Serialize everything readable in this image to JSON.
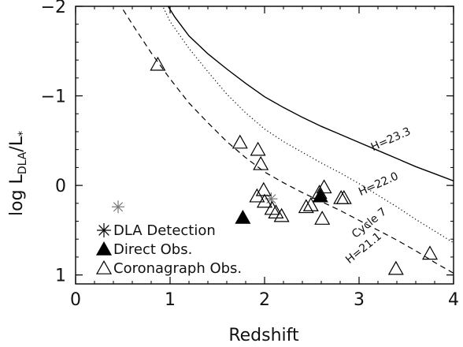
{
  "chart_data": {
    "type": "scatter",
    "title": "",
    "xlabel": "Redshift",
    "ylabel": {
      "main": "log L",
      "sub1": "DLA",
      "mid": "/L",
      "sub2": "*"
    },
    "xlim": [
      0,
      4
    ],
    "ylim": [
      1.1,
      -2.0
    ],
    "x_ticks": [
      0,
      1,
      2,
      3,
      4
    ],
    "y_ticks": [
      -2,
      -1,
      0,
      1
    ],
    "x_tick_labels": [
      "0",
      "1",
      "2",
      "3",
      "4"
    ],
    "y_tick_labels": [
      "−2",
      "−1",
      "0",
      "1"
    ],
    "grid": false,
    "legend": {
      "placement": "bottom-left",
      "entries": [
        {
          "label": "DLA Detection",
          "marker": "asterisk"
        },
        {
          "label": "Direct Obs.",
          "marker": "filled-triangle"
        },
        {
          "label": "Coronagraph Obs.",
          "marker": "open-triangle"
        }
      ]
    },
    "curves": [
      {
        "label": "H=23.3",
        "style": "solid",
        "x": [
          0.95,
          1.05,
          1.2,
          1.4,
          1.6,
          1.8,
          2.0,
          2.2,
          2.4,
          2.6,
          2.8,
          3.0,
          3.2,
          3.4,
          3.6,
          3.8,
          4.0
        ],
        "y": [
          -2.05,
          -1.88,
          -1.67,
          -1.47,
          -1.3,
          -1.14,
          -0.99,
          -0.87,
          -0.76,
          -0.66,
          -0.57,
          -0.48,
          -0.39,
          -0.3,
          -0.21,
          -0.13,
          -0.05
        ]
      },
      {
        "label": "H=22.0",
        "style": "dotted",
        "x": [
          0.9,
          1.0,
          1.2,
          1.4,
          1.6,
          1.8,
          2.0,
          2.2,
          2.4,
          2.6,
          2.8,
          3.0,
          3.2,
          3.4,
          3.6,
          3.8,
          4.0
        ],
        "y": [
          -2.05,
          -1.83,
          -1.53,
          -1.27,
          -1.02,
          -0.81,
          -0.63,
          -0.49,
          -0.37,
          -0.25,
          -0.14,
          -0.02,
          0.11,
          0.24,
          0.38,
          0.51,
          0.64
        ]
      },
      {
        "label": "H=21.1",
        "style": "dashed",
        "x": [
          0.45,
          0.6,
          0.8,
          1.0,
          1.2,
          1.4,
          1.6,
          1.8,
          2.0,
          2.2,
          2.4,
          2.6,
          2.8,
          3.0,
          3.2,
          3.4,
          3.6,
          3.8,
          4.0
        ],
        "y": [
          -2.05,
          -1.8,
          -1.48,
          -1.19,
          -0.92,
          -0.7,
          -0.49,
          -0.31,
          -0.15,
          -0.03,
          0.08,
          0.18,
          0.28,
          0.39,
          0.5,
          0.61,
          0.73,
          0.86,
          0.98
        ]
      }
    ],
    "curve_annotations": [
      {
        "text": "H=23.3",
        "x": 3.35,
        "y": -0.48,
        "angle": -24
      },
      {
        "text": "H=22.0",
        "x": 3.22,
        "y": 0.02,
        "angle": -24
      },
      {
        "text": "Cycle 7",
        "x": 3.13,
        "y": 0.45,
        "angle": -39
      },
      {
        "text": "H=21.1",
        "x": 3.07,
        "y": 0.73,
        "angle": -39
      }
    ],
    "series": [
      {
        "name": "DLA Detection",
        "marker": "asterisk",
        "color": "#777777",
        "x": [
          0.45,
          2.07
        ],
        "y": [
          0.24,
          0.15
        ]
      },
      {
        "name": "Direct Obs.",
        "marker": "filled-triangle",
        "color": "#000000",
        "x": [
          1.77,
          2.59
        ],
        "y": [
          0.36,
          0.12
        ]
      },
      {
        "name": "Coronagraph Obs.",
        "marker": "open-triangle",
        "color": "#000000",
        "x": [
          0.87,
          1.74,
          1.93,
          1.96,
          1.99,
          2.0,
          1.92,
          2.08,
          2.12,
          2.18,
          2.44,
          2.49,
          2.58,
          2.63,
          2.61,
          2.81,
          2.84,
          3.39,
          3.75
        ],
        "y": [
          -1.35,
          -0.48,
          -0.4,
          -0.24,
          0.05,
          0.18,
          0.12,
          0.26,
          0.3,
          0.34,
          0.24,
          0.22,
          0.08,
          0.02,
          0.37,
          0.14,
          0.14,
          0.93,
          0.76
        ]
      }
    ]
  }
}
